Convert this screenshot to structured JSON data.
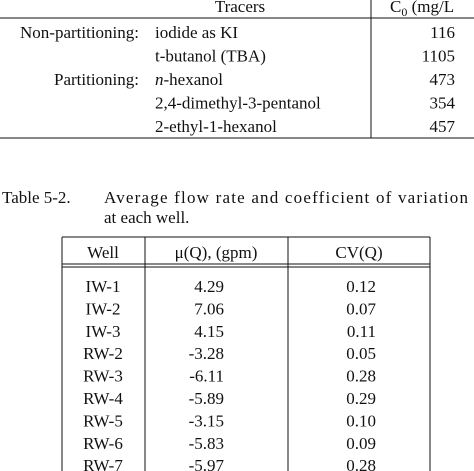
{
  "table1": {
    "header": {
      "tracers": "Tracers",
      "conc_main": "C",
      "conc_sub": "0",
      "conc_unit": " (mg/L"
    },
    "rows": [
      {
        "group": "Non-partitioning:",
        "name": "iodide as KI",
        "value": "116"
      },
      {
        "name": "t-butanol (TBA)",
        "value": "1105"
      },
      {
        "group": "Partitioning:",
        "prefix": "n",
        "name": "-hexanol",
        "value": "473"
      },
      {
        "name": "2,4-dimethyl-3-pentanol",
        "value": "354"
      },
      {
        "name": "2-ethyl-1-hexanol",
        "value": "457"
      }
    ]
  },
  "table2": {
    "caption": {
      "label": "Table 5-2.",
      "line1": "Average flow rate and coefficient of variation",
      "line2": "at each well."
    },
    "header": [
      "Well",
      "μ(Q), (gpm)",
      "CV(Q)"
    ],
    "rows": [
      [
        "IW-1",
        "4.29",
        "0.12"
      ],
      [
        "IW-2",
        "7.06",
        "0.07"
      ],
      [
        "IW-3",
        "4.15",
        "0.11"
      ],
      [
        "RW-2",
        "-3.28",
        "0.05"
      ],
      [
        "RW-3",
        "-6.11",
        "0.28"
      ],
      [
        "RW-4",
        "-5.89",
        "0.29"
      ],
      [
        "RW-5",
        "-3.15",
        "0.10"
      ],
      [
        "RW-6",
        "-5.83",
        "0.09"
      ],
      [
        "RW-7",
        "-5.97",
        "0.28"
      ]
    ]
  }
}
